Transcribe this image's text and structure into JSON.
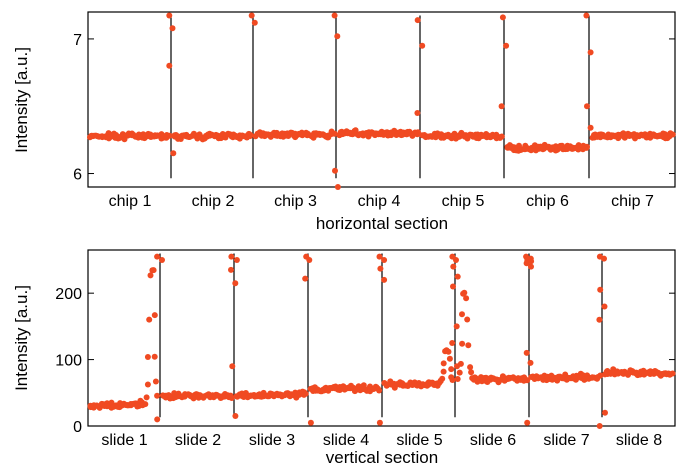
{
  "chart_data": [
    {
      "type": "scatter",
      "ylabel": "Intensity [a.u.]",
      "xlabel": "horizontal section",
      "ylim": [
        5.9,
        7.2
      ],
      "yticks": [
        6,
        7
      ],
      "categories": [
        "chip 1",
        "chip 2",
        "chip 3",
        "chip 4",
        "chip 5",
        "chip 6",
        "chip 7"
      ],
      "color": "#f04a22",
      "baseline_levels": [
        6.28,
        6.28,
        6.29,
        6.3,
        6.28,
        6.19,
        6.28
      ],
      "boundary_spikes": [
        {
          "after": "chip 1",
          "values": [
            7.2,
            7.08,
            6.8,
            6.15
          ]
        },
        {
          "after": "chip 2",
          "values": [
            7.18,
            7.12
          ]
        },
        {
          "after": "chip 3",
          "values": [
            7.19,
            7.02,
            6.02,
            5.9
          ]
        },
        {
          "after": "chip 4",
          "values": [
            7.14,
            6.95,
            6.45
          ]
        },
        {
          "after": "chip 5",
          "values": [
            7.16,
            6.95,
            6.5
          ]
        },
        {
          "after": "chip 6",
          "values": [
            7.19,
            6.9,
            6.5,
            6.34
          ]
        }
      ]
    },
    {
      "type": "scatter",
      "ylabel": "Intensity [a.u.]",
      "xlabel": "vertical section",
      "ylim": [
        0,
        265
      ],
      "yticks": [
        0,
        100,
        200
      ],
      "categories": [
        "slide 1",
        "slide 2",
        "slide 3",
        "slide 4",
        "slide 5",
        "slide 6",
        "slide 7",
        "slide 8"
      ],
      "color": "#f04a22",
      "baseline_levels": [
        30,
        45,
        45,
        55,
        62,
        70,
        72,
        80
      ],
      "peaks": [
        {
          "near": "end of slide 1",
          "value": 240
        },
        {
          "near": "end of slide 5",
          "value": 118
        },
        {
          "near": "start of slide 6",
          "value": 218
        }
      ],
      "boundary_spikes": [
        {
          "after": "slide 1",
          "values": [
            255,
            250,
            10
          ]
        },
        {
          "after": "slide 2",
          "values": [
            255,
            250,
            235,
            215,
            90,
            15
          ]
        },
        {
          "after": "slide 3",
          "values": [
            255,
            250,
            222,
            5
          ]
        },
        {
          "after": "slide 4",
          "values": [
            255,
            250,
            237,
            220,
            5
          ]
        },
        {
          "after": "slide 5",
          "values": [
            255,
            250,
            240,
            225,
            210,
            150,
            125,
            90
          ]
        },
        {
          "after": "slide 6",
          "values": [
            255,
            252,
            250,
            248,
            245,
            240,
            110,
            95,
            5
          ]
        },
        {
          "after": "slide 7",
          "values": [
            255,
            252,
            205,
            180,
            160,
            20,
            0
          ]
        }
      ]
    }
  ]
}
